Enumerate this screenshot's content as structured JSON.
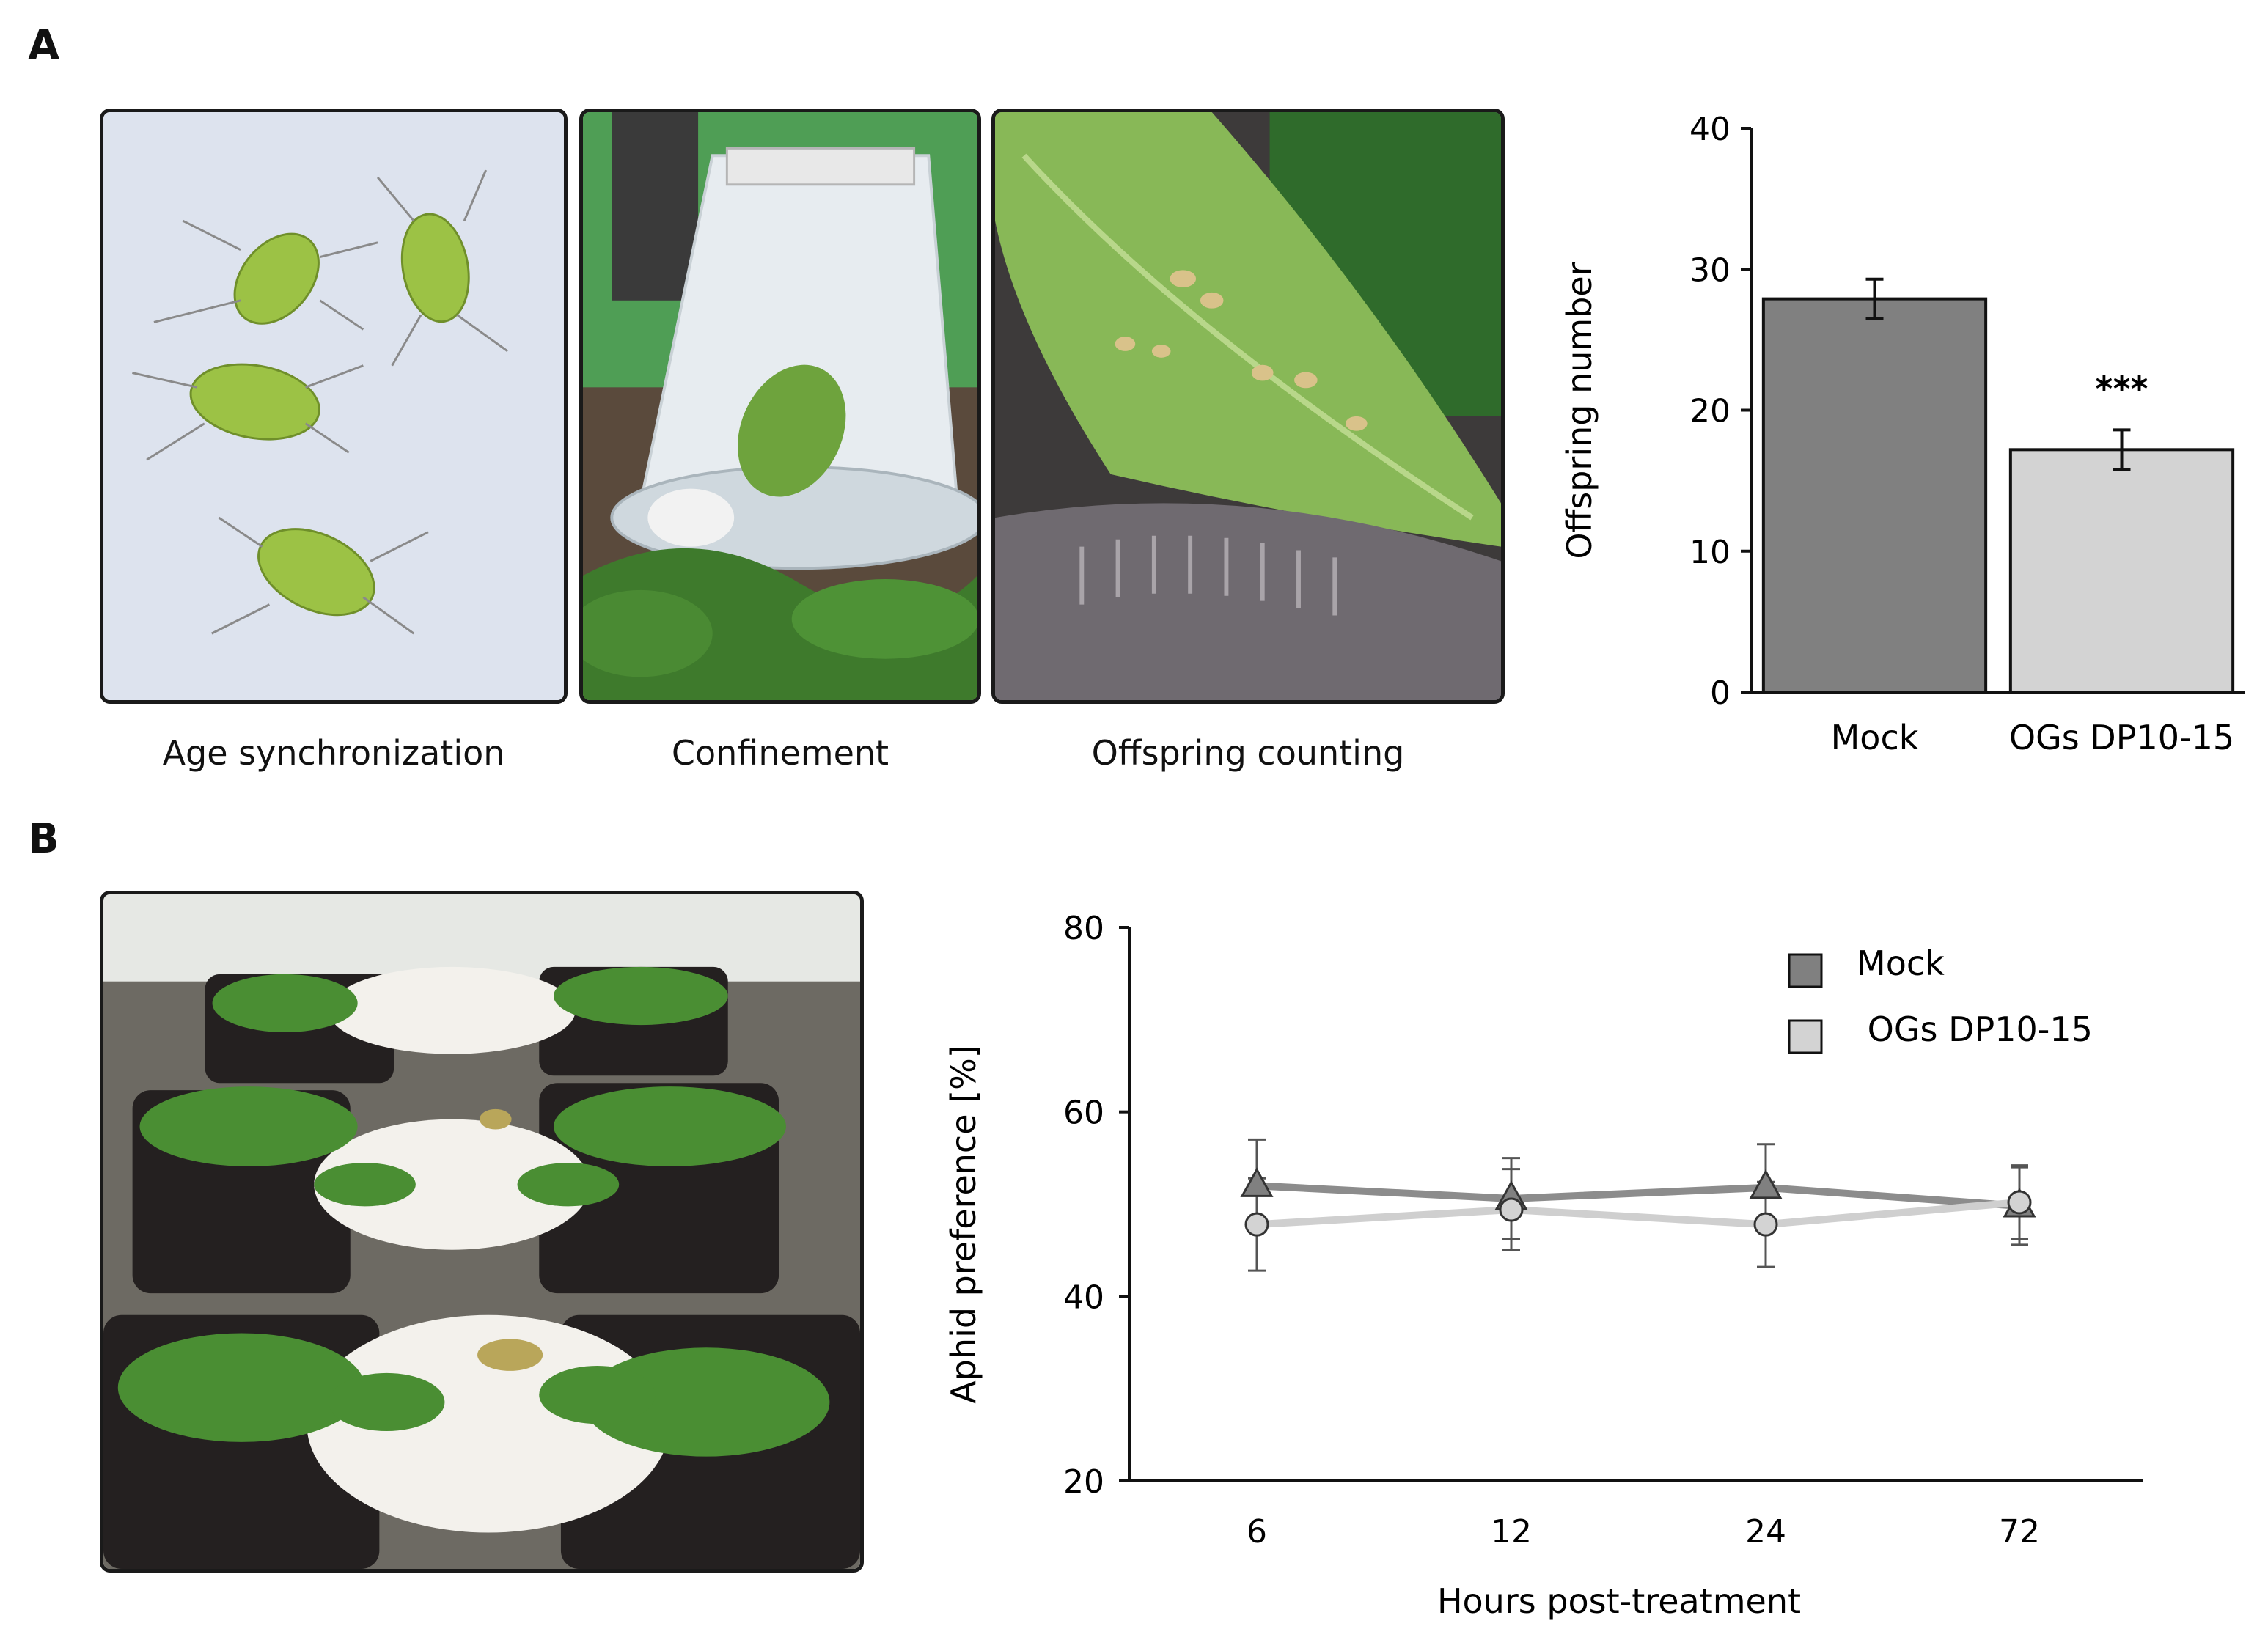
{
  "panel_a": {
    "letter": "A",
    "photos": [
      {
        "caption": "Age synchronization",
        "subject": "aphids-on-white-background"
      },
      {
        "caption": "Confinement",
        "subject": "clip-cage-on-leaf"
      },
      {
        "caption": "Offspring counting",
        "subject": "nymphs-on-leaf"
      }
    ]
  },
  "panel_b": {
    "letter": "B",
    "photo": {
      "subject": "choice-assay-plants-with-paper-discs"
    }
  },
  "colors": {
    "mock": "#808080",
    "ogs": "#d3d3d3",
    "mock_line": "#8c8c8c",
    "ogs_line": "#cfcfcf",
    "axis": "#111111"
  },
  "chart_data": [
    {
      "type": "bar",
      "categories": [
        "Mock",
        "OGs DP10-15"
      ],
      "values": [
        27.9,
        17.2
      ],
      "errors": [
        1.4,
        1.4
      ],
      "annotations": [
        {
          "category": "OGs DP10-15",
          "text": "***"
        }
      ],
      "title": "",
      "xlabel": "",
      "ylabel": "Offspring number",
      "ylim": [
        0,
        40
      ],
      "yticks": [
        0,
        10,
        20,
        30,
        40
      ],
      "grid": false
    },
    {
      "type": "line",
      "x": [
        "6",
        "12",
        "24",
        "72"
      ],
      "series": [
        {
          "name": "Mock",
          "marker": "triangle",
          "values": [
            52,
            50.6,
            51.8,
            49.8
          ],
          "errors": [
            5,
            4.4,
            4.7,
            4.2
          ]
        },
        {
          "name": " OGs DP10-15",
          "marker": "circle",
          "values": [
            47.8,
            49.4,
            47.8,
            50.2
          ],
          "errors": [
            5,
            4.4,
            4.6,
            4
          ]
        }
      ],
      "title": "",
      "xlabel": "Hours post-treatment",
      "ylabel": "Aphid preference [%]",
      "ylim": [
        20,
        80
      ],
      "yticks": [
        20,
        40,
        60,
        80
      ],
      "legend_position": "top-right",
      "grid": false
    }
  ]
}
